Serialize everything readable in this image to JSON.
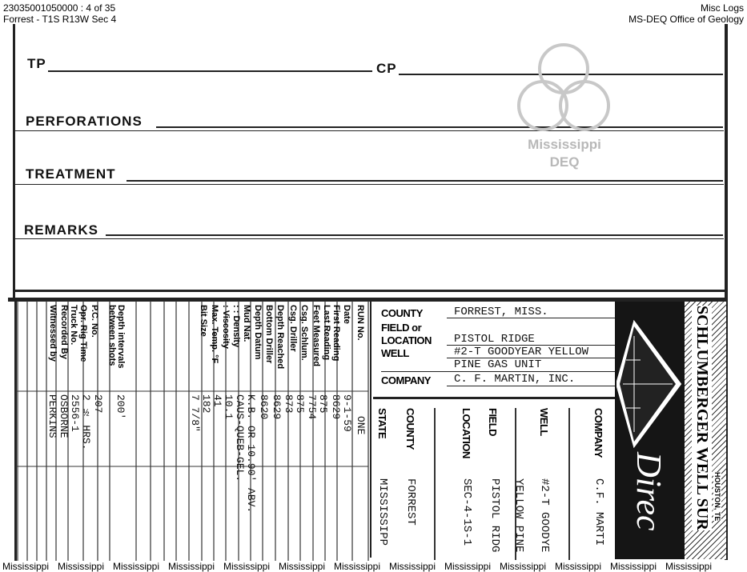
{
  "header": {
    "doc_id": "23035001050000 : 4 of 35",
    "location": "Forrest - T1S R13W Sec 4",
    "category": "Misc Logs",
    "agency": "MS-DEQ Office of Geology"
  },
  "watermark": {
    "line1": "Mississippi",
    "line2": "DEQ"
  },
  "form": {
    "tp": "TP",
    "cp": "CP",
    "perforations": "PERFORATIONS",
    "treatment": "TREATMENT",
    "remarks": "REMARKS"
  },
  "run_table": {
    "labels": [
      "RUN No.",
      "Date",
      "First Reading",
      "Last Reading",
      "Feet Measured",
      "Csg. Schlum.",
      "Csg. Driller",
      "Depth Reached",
      "Bottom Driller",
      "Depth Datum",
      "Mud Nat.",
      ": :  Density",
      ":  Viscosity",
      "Max. Temp. °F",
      "Bit Size",
      "Depth intervals between shots",
      "P.C. No.",
      "Opr. Rig Time",
      "Truck No.",
      "Recorded By",
      "Witnessed by"
    ],
    "values": [
      "ONE",
      "9-1-59",
      "8629",
      "875",
      "7754",
      "875",
      "873",
      "8629",
      "8620",
      "K.B. OR 10.90' ABV.",
      "CAUS-QUEB-GEL.",
      "10.1",
      "41",
      "182",
      "7 7/8\"",
      "200'",
      "207",
      "2 ½ HRS.",
      "2556-1",
      "OSBORNE",
      "PERKINS"
    ]
  },
  "heading_box": {
    "county_label": "COUNTY",
    "county": "FORREST, MISS.",
    "field_label1": "FIELD or",
    "field_label2": "LOCATION",
    "field": "PISTOL RIDGE",
    "well_label": "WELL",
    "well1": "#2-T GOODYEAR YELLOW",
    "well2": "PINE GAS UNIT",
    "company_label": "COMPANY",
    "company": "C. F. MARTIN, INC."
  },
  "spine": {
    "state_label": "STATE",
    "state": "MISSISSIPP",
    "county_label": "COUNTY",
    "county": "FORREST",
    "location_label": "LOCATION",
    "location": "SEC-4-1S-1",
    "field_label": "FIELD",
    "field": "PISTOL RIDG",
    "well_label": "WELL",
    "well1": "YELLOW PINE",
    "well2": "#2-T GOODYE",
    "company_label": "COMPANY",
    "company": "C.F. MARTI"
  },
  "brand": {
    "name": "SCHLUMBERGER WELL SUR",
    "sub": "HOUSTON, TE",
    "script": "Direc"
  },
  "footer": {
    "repeat": [
      "Mississippi",
      "Mississippi",
      "Mississippi",
      "Mississippi",
      "Mississippi",
      "Mississippi",
      "Mississippi",
      "Mississippi",
      "Mississippi",
      "Mississippi",
      "Mississippi",
      "Mississippi",
      "Mississippi"
    ]
  }
}
